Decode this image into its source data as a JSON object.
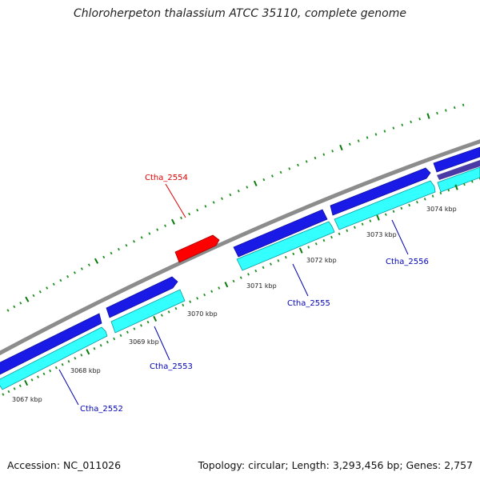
{
  "title": "Chloroherpeton thalassium ATCC 35110, complete genome",
  "footer": {
    "accession": "Accession: NC_011026",
    "summary": "Topology: circular; Length: 3,293,456 bp; Genes: 2,757"
  },
  "colors": {
    "backbone": "#8c8c8c",
    "forward_cds": "#1a1ae6",
    "reverse_cds": "#33ffff",
    "rna": "#ff0000",
    "label_cds": "#0000b4",
    "label_rna": "#dd0000",
    "tick_major": "#0a7a0a",
    "tick_minor": "#1f8f1f",
    "tick_label": "#222222"
  },
  "ticks": [
    "3067 kbp",
    "3068 kbp",
    "3069 kbp",
    "3070 kbp",
    "3071 kbp",
    "3072 kbp",
    "3073 kbp",
    "3074 kbp"
  ],
  "features": [
    {
      "name": "Ctha_2552",
      "type": "CDS"
    },
    {
      "name": "Ctha_2553",
      "type": "CDS"
    },
    {
      "name": "Ctha_2554",
      "type": "RNA"
    },
    {
      "name": "Ctha_2555",
      "type": "CDS"
    },
    {
      "name": "Ctha_2556",
      "type": "CDS"
    }
  ]
}
